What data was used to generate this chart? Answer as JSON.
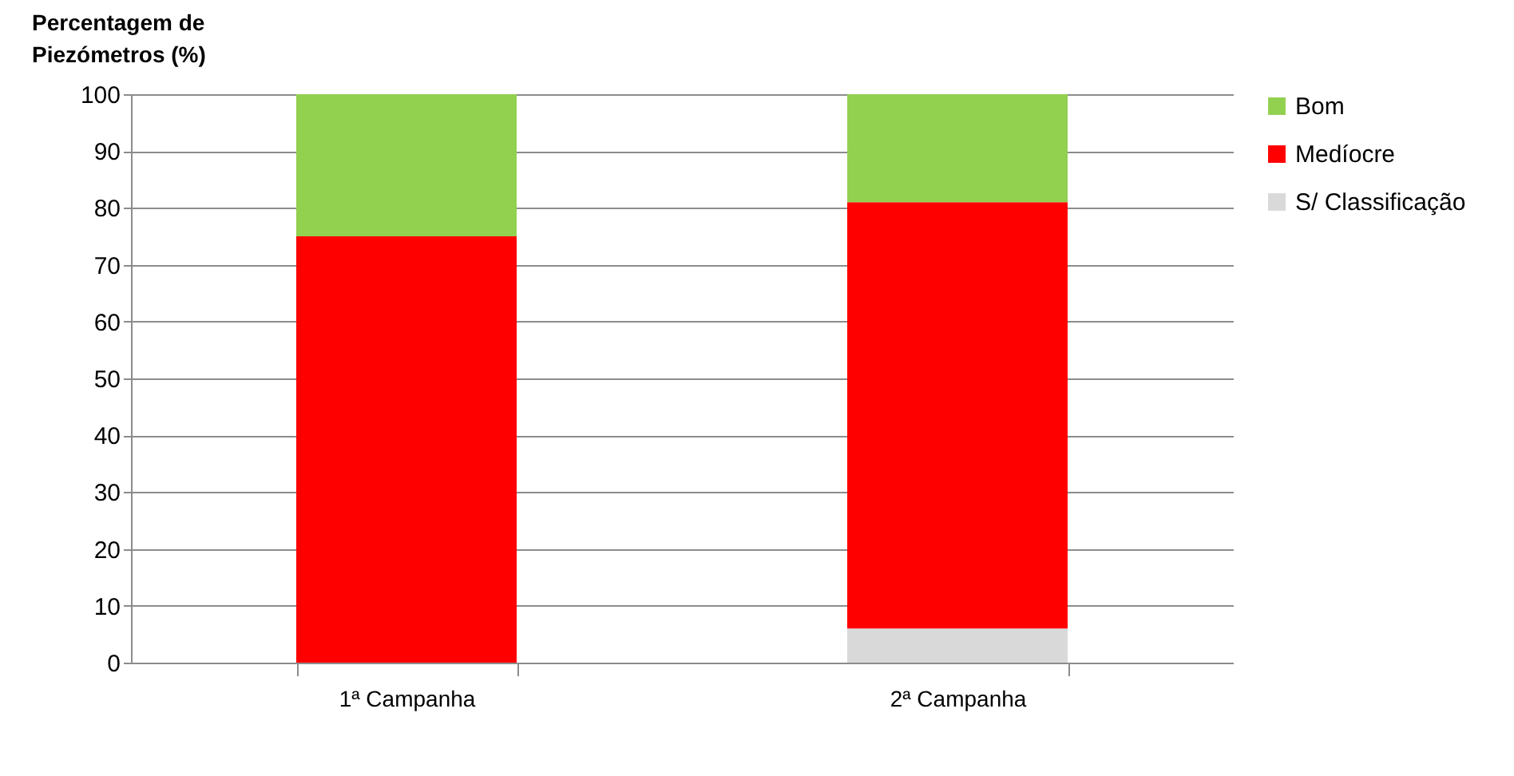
{
  "chart_data": {
    "type": "bar",
    "ylabel": "Percentagem de Piezómetros (%)",
    "categories": [
      "1ª Campanha",
      "2ª Campanha"
    ],
    "stacked": true,
    "series": [
      {
        "name": "S/ Classificação",
        "color": "#d9d9d9",
        "values": [
          0,
          6
        ]
      },
      {
        "name": "Medíocre",
        "color": "#ff0000",
        "values": [
          75,
          75
        ]
      },
      {
        "name": "Bom",
        "color": "#92d050",
        "values": [
          25,
          19
        ]
      }
    ],
    "ylim": [
      0,
      100
    ],
    "yticks": [
      0,
      10,
      20,
      30,
      40,
      50,
      60,
      70,
      80,
      90,
      100
    ],
    "grid": "y",
    "legend": "right"
  }
}
